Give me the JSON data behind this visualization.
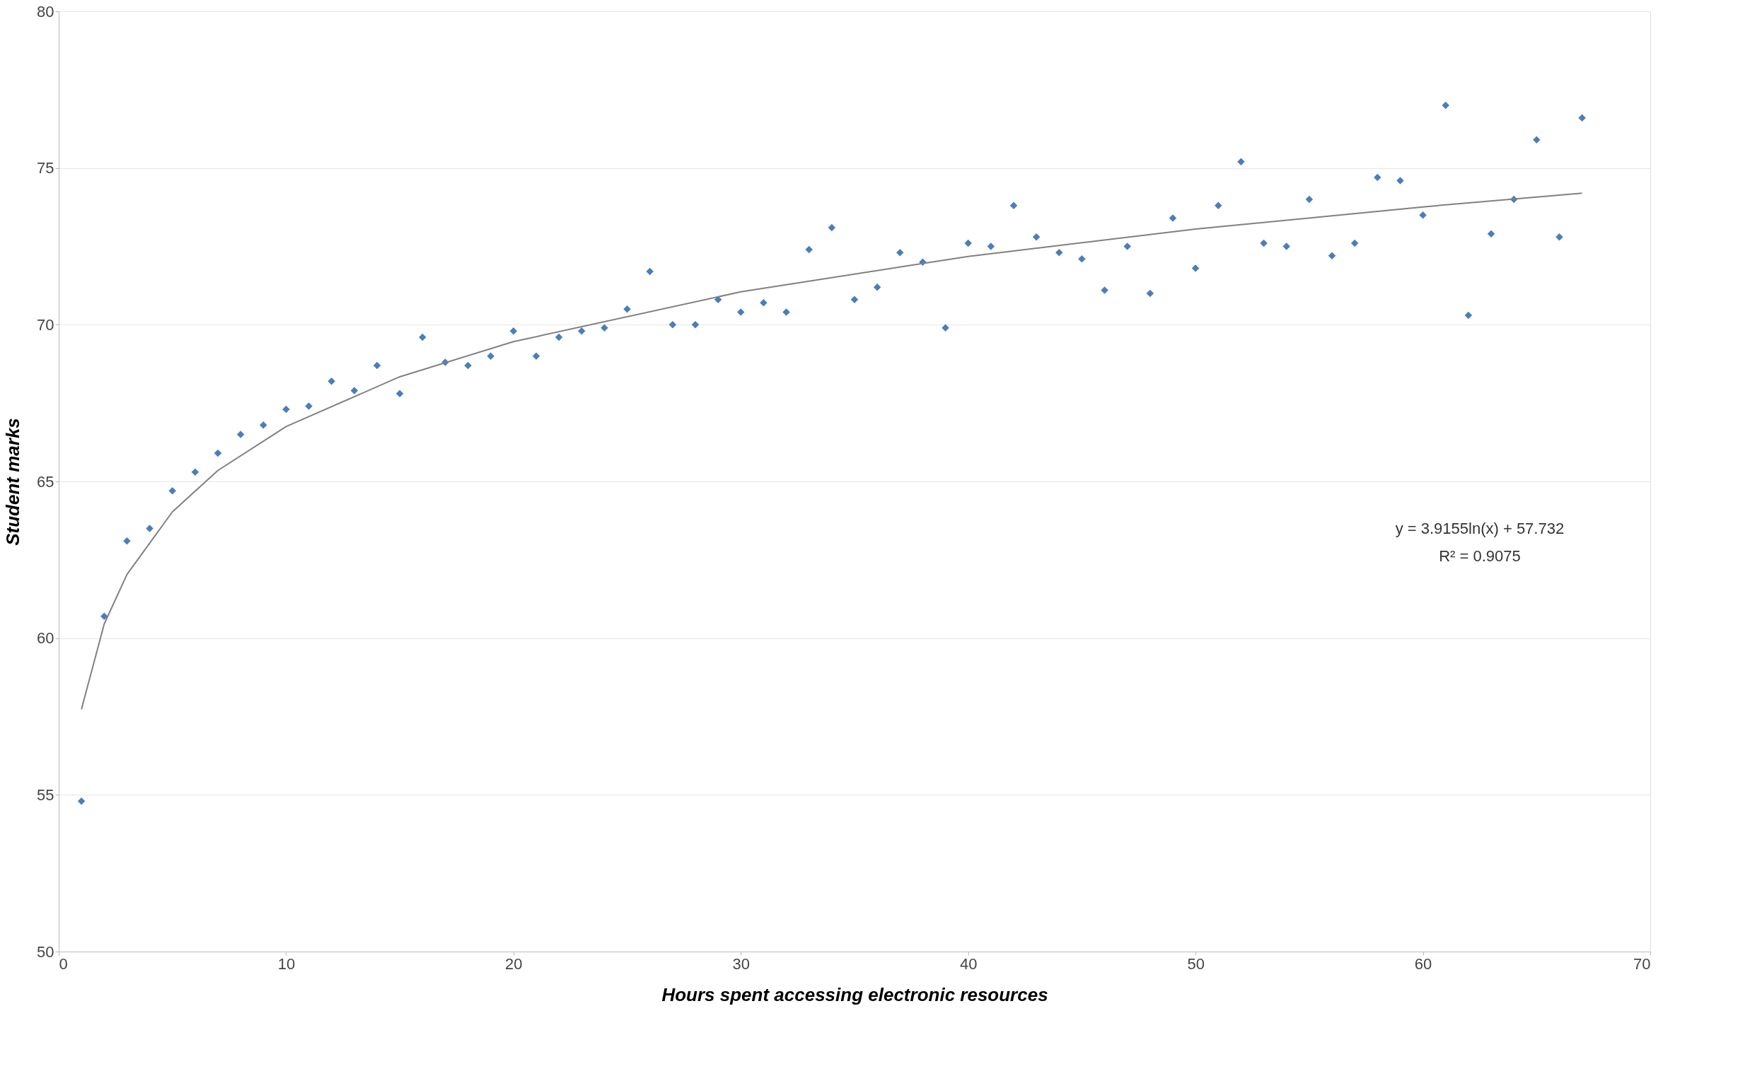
{
  "chart_data": {
    "type": "scatter",
    "xlabel": "Hours spent accessing electronic resources",
    "ylabel": "Student marks",
    "x": [
      1,
      2,
      3,
      4,
      5,
      6,
      7,
      8,
      9,
      10,
      11,
      12,
      13,
      14,
      15,
      16,
      17,
      18,
      19,
      20,
      21,
      22,
      23,
      24,
      25,
      26,
      27,
      28,
      29,
      30,
      31,
      32,
      33,
      34,
      35,
      36,
      37,
      38,
      39,
      40,
      41,
      42,
      43,
      44,
      45,
      46,
      47,
      48,
      49,
      50,
      51,
      52,
      53,
      54,
      55,
      56,
      57,
      58,
      59,
      60,
      61,
      62,
      63,
      64,
      65,
      66,
      67
    ],
    "series": [
      {
        "color": "#4a7ebb",
        "marker": "diamond",
        "values": [
          54.8,
          60.7,
          63.1,
          63.5,
          64.7,
          65.3,
          65.9,
          66.5,
          66.8,
          67.3,
          67.4,
          68.2,
          67.9,
          68.7,
          67.8,
          69.6,
          68.8,
          68.7,
          69.0,
          69.8,
          69.0,
          69.6,
          69.8,
          69.9,
          70.5,
          71.7,
          70.0,
          70.0,
          70.8,
          70.4,
          70.7,
          70.4,
          72.4,
          73.1,
          70.8,
          71.2,
          72.3,
          72.0,
          69.9,
          72.6,
          72.5,
          73.8,
          72.8,
          72.3,
          72.1,
          71.1,
          72.5,
          71.0,
          73.4,
          71.8,
          73.8,
          75.2,
          72.6,
          72.5,
          74.0,
          72.2,
          72.6,
          74.7,
          74.6,
          73.5,
          77.0,
          70.3,
          72.9,
          74.0,
          75.9,
          72.8,
          76.6
        ]
      },
      {
        "type": "line",
        "color": "#808080",
        "x": [
          1,
          2,
          3,
          5,
          7,
          10,
          15,
          20,
          30,
          40,
          50,
          60,
          67
        ],
        "values": [
          57.73,
          60.45,
          62.03,
          64.03,
          65.35,
          66.75,
          68.34,
          69.46,
          71.05,
          72.18,
          73.05,
          73.76,
          74.2
        ]
      }
    ],
    "annotations": [
      "y = 3.9155ln(x) + 57.732",
      "R² = 0.9075"
    ],
    "xlim": [
      0,
      70
    ],
    "xticks": [
      0,
      10,
      20,
      30,
      40,
      50,
      60,
      70
    ],
    "ylim": [
      50,
      80
    ],
    "yticks": [
      50,
      55,
      60,
      65,
      70,
      75,
      80
    ],
    "grid": "y"
  }
}
